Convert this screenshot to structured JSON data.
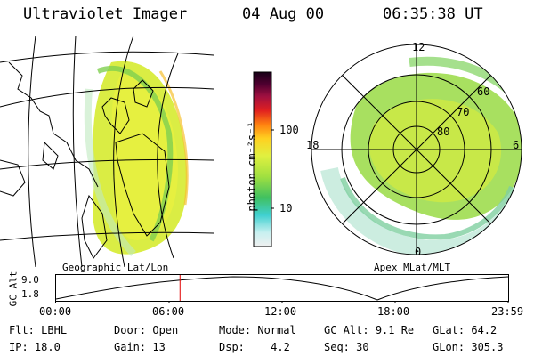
{
  "header": {
    "title": "Ultraviolet Imager",
    "date": "04 Aug 00",
    "time": "06:35:38 UT"
  },
  "colorbar": {
    "unit_label": "photon cm⁻²s⁻¹",
    "ticks": [
      "100",
      "10"
    ],
    "colors": [
      "#e8e8e8",
      "#c8f0f0",
      "#40d0d0",
      "#40c060",
      "#a0e040",
      "#e0f040",
      "#ffd020",
      "#ff8010",
      "#e02020",
      "#a01040",
      "#500030",
      "#180018"
    ]
  },
  "left_panel": {
    "label": "Geographic Lat/Lon"
  },
  "right_panel": {
    "label": "Apex MLat/MLT",
    "mlt_labels": [
      "12",
      "18",
      "6",
      "0"
    ],
    "mlat_labels": [
      "60",
      "70",
      "80"
    ]
  },
  "timeline": {
    "ylabel": "GC Alt",
    "yticks": [
      "9.0",
      "1.8"
    ],
    "xticks": [
      "00:00",
      "06:00",
      "12:00",
      "18:00",
      "23:59"
    ],
    "current_time_marker_hours": 6.59
  },
  "info": {
    "flt_label": "Flt:",
    "flt_value": "LBHL",
    "ip_label": "IP:",
    "ip_value": "18.0",
    "door_label": "Door:",
    "door_value": "Open",
    "gain_label": "Gain:",
    "gain_value": "13",
    "mode_label": "Mode:",
    "mode_value": "Normal",
    "dsp_label": "Dsp:",
    "dsp_value": "4.2",
    "gcalt_label": "GC Alt:",
    "gcalt_value": "9.1 Re",
    "seq_label": "Seq:",
    "seq_value": "30",
    "glat_label": "GLat:",
    "glat_value": "64.2",
    "glon_label": "GLon:",
    "glon_value": "305.3"
  }
}
